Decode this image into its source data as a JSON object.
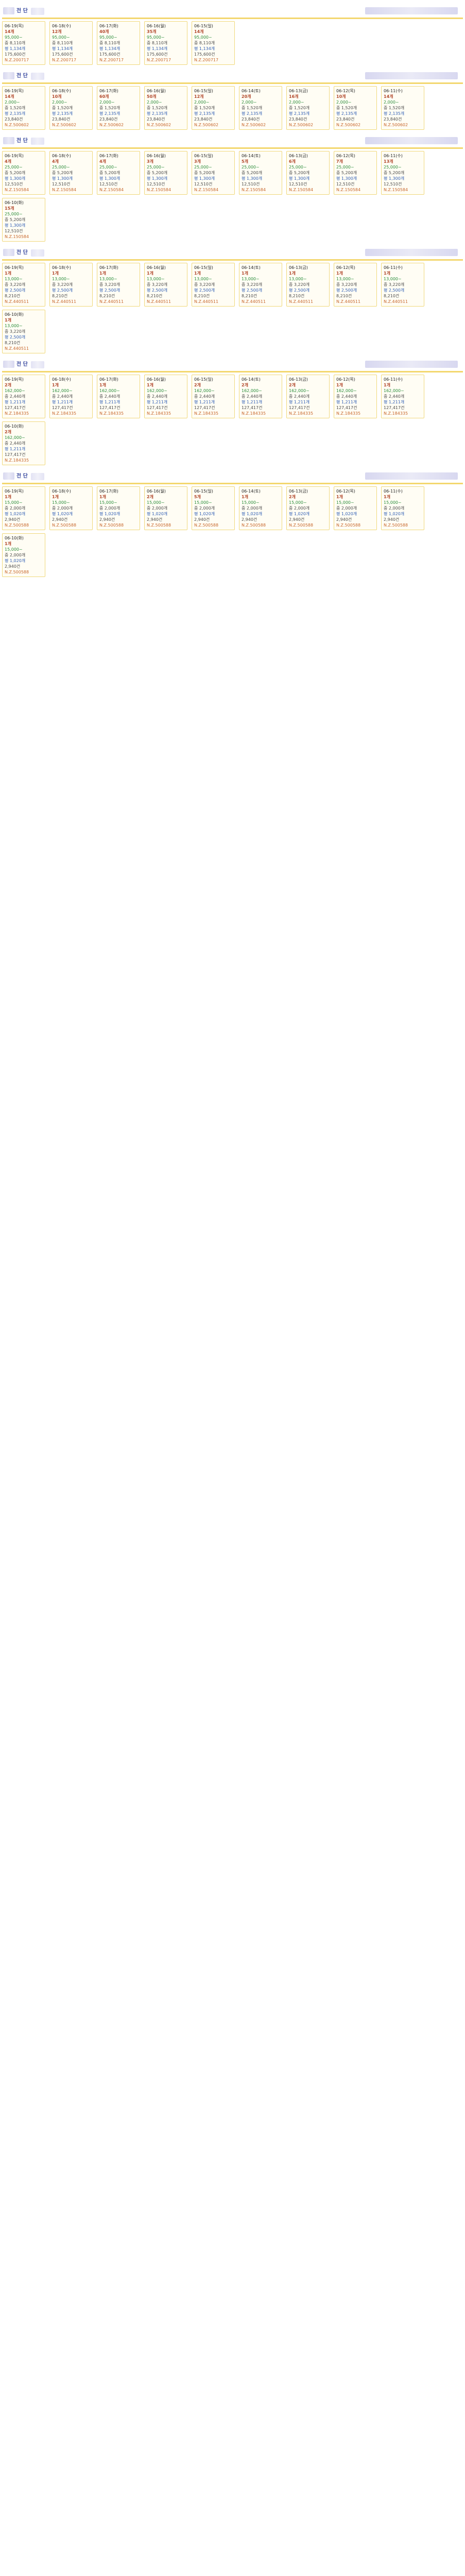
{
  "page": {
    "title": ""
  },
  "sections": [
    {
      "title": "전 단",
      "cards": [
        {
          "date": "06-19(목)",
          "count": "14개",
          "l1": "95,000~",
          "l2": "중 8,110개",
          "l3": "평 1,134개",
          "l4": "175,600건",
          "l5": "N.Z.200717"
        },
        {
          "date": "06-18(수)",
          "count": "12개",
          "l1": "95,000~",
          "l2": "중 8,110개",
          "l3": "평 1,134개",
          "l4": "175,600건",
          "l5": "N.Z.200717"
        },
        {
          "date": "06-17(화)",
          "count": "40개",
          "l1": "95,000~",
          "l2": "중 8,110개",
          "l3": "평 1,134개",
          "l4": "175,600건",
          "l5": "N.Z.200717"
        },
        {
          "date": "06-16(월)",
          "count": "35개",
          "l1": "95,000~",
          "l2": "중 8,110개",
          "l3": "평 1,134개",
          "l4": "175,600건",
          "l5": "N.Z.200717"
        },
        {
          "date": "06-15(일)",
          "count": "14개",
          "l1": "95,000~",
          "l2": "중 8,110개",
          "l3": "평 1,134개",
          "l4": "175,600건",
          "l5": "N.Z.200717"
        }
      ]
    },
    {
      "title": "전 단",
      "cards": [
        {
          "date": "06-19(목)",
          "count": "14개",
          "l1": "2,000~",
          "l2": "중 1,520개",
          "l3": "평 2,135개",
          "l4": "23,840건",
          "l5": "N.Z.500602"
        },
        {
          "date": "06-18(수)",
          "count": "10개",
          "l1": "2,000~",
          "l2": "중 1,520개",
          "l3": "평 2,135개",
          "l4": "23,840건",
          "l5": "N.Z.500602"
        },
        {
          "date": "06-17(화)",
          "count": "60개",
          "l1": "2,000~",
          "l2": "중 1,520개",
          "l3": "평 2,135개",
          "l4": "23,840건",
          "l5": "N.Z.500602"
        },
        {
          "date": "06-16(월)",
          "count": "50개",
          "l1": "2,000~",
          "l2": "중 1,520개",
          "l3": "평 2,135개",
          "l4": "23,840건",
          "l5": "N.Z.500602"
        },
        {
          "date": "06-15(일)",
          "count": "12개",
          "l1": "2,000~",
          "l2": "중 1,520개",
          "l3": "평 2,135개",
          "l4": "23,840건",
          "l5": "N.Z.500602"
        },
        {
          "date": "06-14(토)",
          "count": "20개",
          "l1": "2,000~",
          "l2": "중 1,520개",
          "l3": "평 2,135개",
          "l4": "23,840건",
          "l5": "N.Z.500602"
        },
        {
          "date": "06-13(금)",
          "count": "16개",
          "l1": "2,000~",
          "l2": "중 1,520개",
          "l3": "평 2,135개",
          "l4": "23,840건",
          "l5": "N.Z.500602"
        },
        {
          "date": "06-12(목)",
          "count": "10개",
          "l1": "2,000~",
          "l2": "중 1,520개",
          "l3": "평 2,135개",
          "l4": "23,840건",
          "l5": "N.Z.500602"
        },
        {
          "date": "06-11(수)",
          "count": "14개",
          "l1": "2,000~",
          "l2": "중 1,520개",
          "l3": "평 2,135개",
          "l4": "23,840건",
          "l5": "N.Z.500602"
        }
      ]
    },
    {
      "title": "전 단",
      "cards": [
        {
          "date": "06-19(목)",
          "count": "4개",
          "l1": "25,000~",
          "l2": "중 5,200개",
          "l3": "평 1,300개",
          "l4": "12,510건",
          "l5": "N.Z.150584"
        },
        {
          "date": "06-18(수)",
          "count": "4개",
          "l1": "25,000~",
          "l2": "중 5,200개",
          "l3": "평 1,300개",
          "l4": "12,510건",
          "l5": "N.Z.150584"
        },
        {
          "date": "06-17(화)",
          "count": "4개",
          "l1": "25,000~",
          "l2": "중 5,200개",
          "l3": "평 1,300개",
          "l4": "12,510건",
          "l5": "N.Z.150584"
        },
        {
          "date": "06-16(월)",
          "count": "3개",
          "l1": "25,000~",
          "l2": "중 5,200개",
          "l3": "평 1,300개",
          "l4": "12,510건",
          "l5": "N.Z.150584"
        },
        {
          "date": "06-15(일)",
          "count": "3개",
          "l1": "25,000~",
          "l2": "중 5,200개",
          "l3": "평 1,300개",
          "l4": "12,510건",
          "l5": "N.Z.150584"
        },
        {
          "date": "06-14(토)",
          "count": "5개",
          "l1": "25,000~",
          "l2": "중 5,200개",
          "l3": "평 1,300개",
          "l4": "12,510건",
          "l5": "N.Z.150584"
        },
        {
          "date": "06-13(금)",
          "count": "6개",
          "l1": "25,000~",
          "l2": "중 5,200개",
          "l3": "평 1,300개",
          "l4": "12,510건",
          "l5": "N.Z.150584"
        },
        {
          "date": "06-12(목)",
          "count": "7개",
          "l1": "25,000~",
          "l2": "중 5,200개",
          "l3": "평 1,300개",
          "l4": "12,510건",
          "l5": "N.Z.150584"
        },
        {
          "date": "06-11(수)",
          "count": "13개",
          "l1": "25,000~",
          "l2": "중 5,200개",
          "l3": "평 1,300개",
          "l4": "12,510건",
          "l5": "N.Z.150584"
        },
        {
          "date": "06-10(화)",
          "count": "15개",
          "l1": "25,000~",
          "l2": "중 5,200개",
          "l3": "평 1,300개",
          "l4": "12,510건",
          "l5": "N.Z.150584"
        }
      ]
    },
    {
      "title": "전 단",
      "cards": [
        {
          "date": "06-19(목)",
          "count": "1개",
          "l1": "13,000~",
          "l2": "중 3,220개",
          "l3": "평 2,500개",
          "l4": "8,210건",
          "l5": "N.Z.440511"
        },
        {
          "date": "06-18(수)",
          "count": "1개",
          "l1": "13,000~",
          "l2": "중 3,220개",
          "l3": "평 2,500개",
          "l4": "8,210건",
          "l5": "N.Z.440511"
        },
        {
          "date": "06-17(화)",
          "count": "1개",
          "l1": "13,000~",
          "l2": "중 3,220개",
          "l3": "평 2,500개",
          "l4": "8,210건",
          "l5": "N.Z.440511"
        },
        {
          "date": "06-16(월)",
          "count": "1개",
          "l1": "13,000~",
          "l2": "중 3,220개",
          "l3": "평 2,500개",
          "l4": "8,210건",
          "l5": "N.Z.440511"
        },
        {
          "date": "06-15(일)",
          "count": "1개",
          "l1": "13,000~",
          "l2": "중 3,220개",
          "l3": "평 2,500개",
          "l4": "8,210건",
          "l5": "N.Z.440511"
        },
        {
          "date": "06-14(토)",
          "count": "1개",
          "l1": "13,000~",
          "l2": "중 3,220개",
          "l3": "평 2,500개",
          "l4": "8,210건",
          "l5": "N.Z.440511"
        },
        {
          "date": "06-13(금)",
          "count": "1개",
          "l1": "13,000~",
          "l2": "중 3,220개",
          "l3": "평 2,500개",
          "l4": "8,210건",
          "l5": "N.Z.440511"
        },
        {
          "date": "06-12(목)",
          "count": "1개",
          "l1": "13,000~",
          "l2": "중 3,220개",
          "l3": "평 2,500개",
          "l4": "8,210건",
          "l5": "N.Z.440511"
        },
        {
          "date": "06-11(수)",
          "count": "1개",
          "l1": "13,000~",
          "l2": "중 3,220개",
          "l3": "평 2,500개",
          "l4": "8,210건",
          "l5": "N.Z.440511"
        },
        {
          "date": "06-10(화)",
          "count": "1개",
          "l1": "13,000~",
          "l2": "중 3,220개",
          "l3": "평 2,500개",
          "l4": "8,210건",
          "l5": "N.Z.440511"
        }
      ]
    },
    {
      "title": "전 단",
      "cards": [
        {
          "date": "06-19(목)",
          "count": "2개",
          "l1": "162,000~",
          "l2": "중 2,440개",
          "l3": "평 1,211개",
          "l4": "127,417건",
          "l5": "N.Z.184335"
        },
        {
          "date": "06-18(수)",
          "count": "1개",
          "l1": "162,000~",
          "l2": "중 2,440개",
          "l3": "평 1,211개",
          "l4": "127,417건",
          "l5": "N.Z.184335"
        },
        {
          "date": "06-17(화)",
          "count": "1개",
          "l1": "162,000~",
          "l2": "중 2,440개",
          "l3": "평 1,211개",
          "l4": "127,417건",
          "l5": "N.Z.184335"
        },
        {
          "date": "06-16(월)",
          "count": "1개",
          "l1": "162,000~",
          "l2": "중 2,440개",
          "l3": "평 1,211개",
          "l4": "127,417건",
          "l5": "N.Z.184335"
        },
        {
          "date": "06-15(일)",
          "count": "2개",
          "l1": "162,000~",
          "l2": "중 2,440개",
          "l3": "평 1,211개",
          "l4": "127,417건",
          "l5": "N.Z.184335"
        },
        {
          "date": "06-14(토)",
          "count": "2개",
          "l1": "162,000~",
          "l2": "중 2,440개",
          "l3": "평 1,211개",
          "l4": "127,417건",
          "l5": "N.Z.184335"
        },
        {
          "date": "06-13(금)",
          "count": "2개",
          "l1": "162,000~",
          "l2": "중 2,440개",
          "l3": "평 1,211개",
          "l4": "127,417건",
          "l5": "N.Z.184335"
        },
        {
          "date": "06-12(목)",
          "count": "1개",
          "l1": "162,000~",
          "l2": "중 2,440개",
          "l3": "평 1,211개",
          "l4": "127,417건",
          "l5": "N.Z.184335"
        },
        {
          "date": "06-11(수)",
          "count": "1개",
          "l1": "162,000~",
          "l2": "중 2,440개",
          "l3": "평 1,211개",
          "l4": "127,417건",
          "l5": "N.Z.184335"
        },
        {
          "date": "06-10(화)",
          "count": "2개",
          "l1": "162,000~",
          "l2": "중 2,440개",
          "l3": "평 1,211개",
          "l4": "127,417건",
          "l5": "N.Z.184335"
        }
      ]
    },
    {
      "title": "전 단",
      "cards": [
        {
          "date": "06-19(목)",
          "count": "1개",
          "l1": "15,000~",
          "l2": "중 2,000개",
          "l3": "평 1,020개",
          "l4": "2,940건",
          "l5": "N.Z.500588"
        },
        {
          "date": "06-18(수)",
          "count": "1개",
          "l1": "15,000~",
          "l2": "중 2,000개",
          "l3": "평 1,020개",
          "l4": "2,940건",
          "l5": "N.Z.500588"
        },
        {
          "date": "06-17(화)",
          "count": "1개",
          "l1": "15,000~",
          "l2": "중 2,000개",
          "l3": "평 1,020개",
          "l4": "2,940건",
          "l5": "N.Z.500588"
        },
        {
          "date": "06-16(월)",
          "count": "2개",
          "l1": "15,000~",
          "l2": "중 2,000개",
          "l3": "평 1,020개",
          "l4": "2,940건",
          "l5": "N.Z.500588"
        },
        {
          "date": "06-15(일)",
          "count": "5개",
          "l1": "15,000~",
          "l2": "중 2,000개",
          "l3": "평 1,020개",
          "l4": "2,940건",
          "l5": "N.Z.500588"
        },
        {
          "date": "06-14(토)",
          "count": "1개",
          "l1": "15,000~",
          "l2": "중 2,000개",
          "l3": "평 1,020개",
          "l4": "2,940건",
          "l5": "N.Z.500588"
        },
        {
          "date": "06-13(금)",
          "count": "2개",
          "l1": "15,000~",
          "l2": "중 2,000개",
          "l3": "평 1,020개",
          "l4": "2,940건",
          "l5": "N.Z.500588"
        },
        {
          "date": "06-12(목)",
          "count": "1개",
          "l1": "15,000~",
          "l2": "중 2,000개",
          "l3": "평 1,020개",
          "l4": "2,940건",
          "l5": "N.Z.500588"
        },
        {
          "date": "06-11(수)",
          "count": "1개",
          "l1": "15,000~",
          "l2": "중 2,000개",
          "l3": "평 1,020개",
          "l4": "2,940건",
          "l5": "N.Z.500588"
        },
        {
          "date": "06-10(화)",
          "count": "1개",
          "l1": "15,000~",
          "l2": "중 2,000개",
          "l3": "평 1,020개",
          "l4": "2,940건",
          "l5": "N.Z.500588"
        }
      ]
    }
  ],
  "colors": {
    "card_border": "#f0d87a",
    "section_title": "#3a4aa0",
    "count": "#b1472b",
    "green": "#2a8d3a"
  }
}
